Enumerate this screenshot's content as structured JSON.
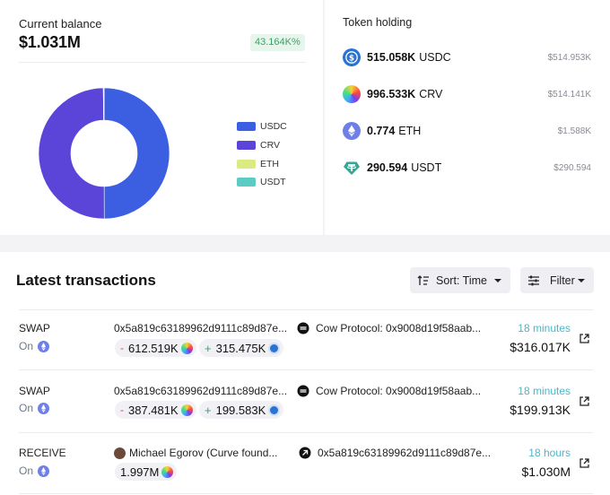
{
  "balance": {
    "label": "Current balance",
    "value": "$1.031M",
    "change": "43.164K%"
  },
  "allocation": {
    "segments": [
      {
        "name": "USDC",
        "fraction": 0.4995,
        "color": "#3b5fe0"
      },
      {
        "name": "CRV",
        "fraction": 0.4986,
        "color": "#5b44d8"
      },
      {
        "name": "ETH",
        "fraction": 0.0015,
        "color": "#dbeb82"
      },
      {
        "name": "USDT",
        "fraction": 0.0004,
        "color": "#5ccbc4"
      }
    ]
  },
  "legend": [
    {
      "label": "USDC",
      "color": "#3b5fe0"
    },
    {
      "label": "CRV",
      "color": "#5b44d8"
    },
    {
      "label": "ETH",
      "color": "#dbeb82"
    },
    {
      "label": "USDT",
      "color": "#5ccbc4"
    }
  ],
  "holdings": {
    "title": "Token holding",
    "items": [
      {
        "amount": "515.058K",
        "symbol": "USDC",
        "usd": "$514.953K",
        "icon": "usdc-icon"
      },
      {
        "amount": "996.533K",
        "symbol": "CRV",
        "usd": "$514.141K",
        "icon": "crv-icon"
      },
      {
        "amount": "0.774",
        "symbol": "ETH",
        "usd": "$1.588K",
        "icon": "eth-icon"
      },
      {
        "amount": "290.594",
        "symbol": "USDT",
        "usd": "$290.594",
        "icon": "usdt-icon"
      }
    ]
  },
  "transactions": {
    "title": "Latest transactions",
    "sort_label": "Sort: Time",
    "filter_label": "Filter",
    "rows": [
      {
        "type": "SWAP",
        "on": "On",
        "from": "0x5a819c63189962d9111c89d87e...",
        "to": "Cow Protocol: 0x9008d19f58aab...",
        "time": "18 minutes",
        "usd": "$316.017K",
        "out_amount": "612.519K",
        "in_amount": "315.475K"
      },
      {
        "type": "SWAP",
        "on": "On",
        "from": "0x5a819c63189962d9111c89d87e...",
        "to": "Cow Protocol: 0x9008d19f58aab...",
        "time": "18 minutes",
        "usd": "$199.913K",
        "out_amount": "387.481K",
        "in_amount": "199.583K"
      },
      {
        "type": "RECEIVE",
        "on": "On",
        "from": "Michael Egorov (Curve found...",
        "to": "0x5a819c63189962d9111c89d87e...",
        "time": "18 hours",
        "usd": "$1.030M",
        "in_amount": "1.997M"
      }
    ]
  }
}
